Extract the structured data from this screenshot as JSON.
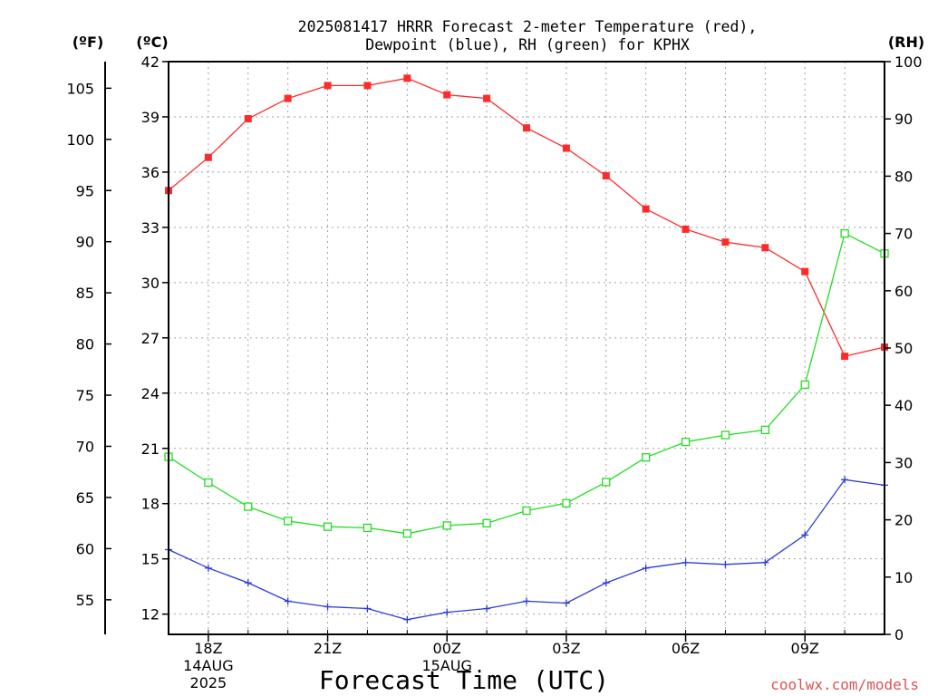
{
  "chart_data": {
    "type": "line",
    "title": "2025081417 HRRR Forecast 2-meter Temperature (red),",
    "title_line2": "Dewpoint (blue), RH (green) for KPHX",
    "xlabel": "Forecast Time (UTC)",
    "watermark": "coolwx.com/models",
    "left_axis_f_label": "(ºF)",
    "left_axis_c_label": "(ºC)",
    "right_axis_label": "(RH)",
    "x": [
      "2025-08-14 17Z",
      "2025-08-14 18Z",
      "2025-08-14 19Z",
      "2025-08-14 20Z",
      "2025-08-14 21Z",
      "2025-08-14 22Z",
      "2025-08-14 23Z",
      "2025-08-15 00Z",
      "2025-08-15 01Z",
      "2025-08-15 02Z",
      "2025-08-15 03Z",
      "2025-08-15 04Z",
      "2025-08-15 05Z",
      "2025-08-15 06Z",
      "2025-08-15 07Z",
      "2025-08-15 08Z",
      "2025-08-15 09Z",
      "2025-08-15 10Z",
      "2025-08-15 11Z"
    ],
    "xlim": [
      "2025-08-14 17Z",
      "2025-08-15 11Z"
    ],
    "x_ticks": [
      {
        "x": "2025-08-14 18Z",
        "lines": [
          "18Z",
          "14AUG",
          "2025"
        ]
      },
      {
        "x": "2025-08-14 21Z",
        "lines": [
          "21Z"
        ]
      },
      {
        "x": "2025-08-15 00Z",
        "lines": [
          "00Z",
          "15AUG"
        ]
      },
      {
        "x": "2025-08-15 03Z",
        "lines": [
          "03Z"
        ]
      },
      {
        "x": "2025-08-15 06Z",
        "lines": [
          "06Z"
        ]
      },
      {
        "x": "2025-08-15 09Z",
        "lines": [
          "09Z"
        ]
      }
    ],
    "celsius_axis": {
      "ylim": [
        10.9,
        42
      ],
      "ticks": [
        12,
        15,
        18,
        21,
        24,
        27,
        30,
        33,
        36,
        39,
        42
      ]
    },
    "fahrenheit_axis": {
      "ticks": [
        55,
        60,
        65,
        70,
        75,
        80,
        85,
        90,
        95,
        100,
        105
      ]
    },
    "rh_axis": {
      "ylim": [
        0,
        100
      ],
      "ticks": [
        0,
        10,
        20,
        30,
        40,
        50,
        60,
        70,
        80,
        90,
        100
      ]
    },
    "series": [
      {
        "id": "temperature",
        "axis": "celsius",
        "color": "#ff2a2a",
        "marker": "filled-square",
        "values": [
          35.0,
          36.8,
          38.9,
          40.0,
          40.7,
          40.7,
          41.1,
          40.2,
          40.0,
          38.4,
          37.3,
          35.8,
          34.0,
          32.9,
          32.2,
          31.9,
          30.6,
          26.0,
          26.5
        ]
      },
      {
        "id": "dewpoint",
        "axis": "celsius",
        "color": "#2a3cdc",
        "marker": "plus",
        "values": [
          15.5,
          14.5,
          13.7,
          12.7,
          12.4,
          12.3,
          11.7,
          12.1,
          12.3,
          12.7,
          12.6,
          13.7,
          14.5,
          14.8,
          14.7,
          14.8,
          16.3,
          19.3,
          19.0
        ]
      },
      {
        "id": "rh",
        "axis": "rh",
        "color": "#22dd22",
        "marker": "open-square",
        "values": [
          31.0,
          26.5,
          22.3,
          19.8,
          18.8,
          18.6,
          17.6,
          19.0,
          19.4,
          21.6,
          22.9,
          26.6,
          30.9,
          33.6,
          34.8,
          35.7,
          43.6,
          70.0,
          66.5
        ]
      }
    ],
    "grid": true
  }
}
